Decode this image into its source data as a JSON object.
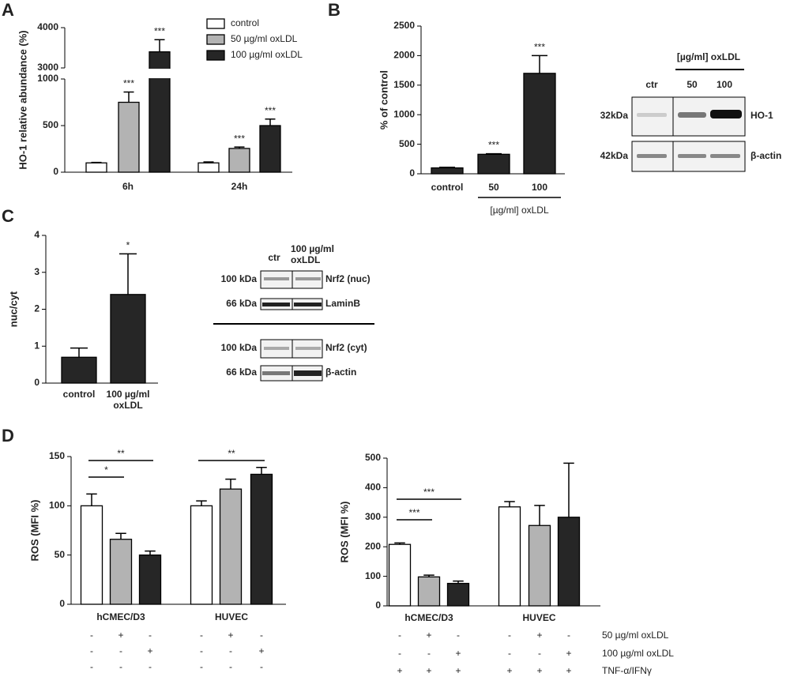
{
  "panel_labels": [
    "A",
    "B",
    "C",
    "D"
  ],
  "chart_data": [
    {
      "type": "bar",
      "ylabel": "HO-1 relative abundance (%)",
      "categories": [
        "6h",
        "24h"
      ],
      "series": [
        {
          "name": "control",
          "color": "#ffffff",
          "values": [
            100,
            100
          ],
          "errors": [
            5,
            10
          ],
          "stars": [
            null,
            null
          ]
        },
        {
          "name": "50 µg/ml oxLDL",
          "color": "#b3b3b3",
          "values": [
            750,
            255
          ],
          "errors": [
            110,
            15
          ],
          "stars": [
            "***",
            "***"
          ]
        },
        {
          "name": "100 µg/ml oxLDL",
          "color": "#262626",
          "values": [
            3400,
            500
          ],
          "errors": [
            300,
            70
          ],
          "stars": [
            "***",
            "***"
          ]
        }
      ],
      "ylim": [
        0,
        4000
      ],
      "axis_break": [
        1000,
        3000
      ],
      "yticks": [
        0,
        500,
        1000,
        3000,
        4000
      ]
    },
    {
      "type": "bar",
      "ylabel": "% of control",
      "categories": [
        "control",
        "50",
        "100"
      ],
      "color": "#262626",
      "values": [
        100,
        330,
        1700
      ],
      "errors": [
        10,
        10,
        300
      ],
      "stars": [
        null,
        "***",
        "***"
      ],
      "x_group_label": "[µg/ml] oxLDL",
      "ylim": [
        0,
        2500
      ],
      "yticks": [
        0,
        500,
        1000,
        1500,
        2000,
        2500
      ]
    },
    {
      "type": "bar",
      "ylabel": "nuc/cyt",
      "categories": [
        "control",
        "100 µg/ml oxLDL"
      ],
      "color": "#262626",
      "values": [
        0.7,
        2.4
      ],
      "errors": [
        0.25,
        1.1
      ],
      "stars": [
        null,
        "*"
      ],
      "ylim": [
        0,
        4
      ],
      "yticks": [
        0,
        1,
        2,
        3,
        4
      ]
    },
    {
      "type": "bar",
      "ylabel": "ROS (MFI %)",
      "categories": [
        "hCMEC/D3",
        "HUVEC"
      ],
      "series": [
        {
          "color": "#ffffff",
          "values": [
            100,
            100
          ],
          "errors": [
            12,
            5
          ]
        },
        {
          "color": "#b3b3b3",
          "values": [
            66,
            117
          ],
          "errors": [
            6,
            10
          ]
        },
        {
          "color": "#262626",
          "values": [
            50,
            132
          ],
          "errors": [
            4,
            7
          ]
        }
      ],
      "brackets": [
        "*",
        "**",
        "**"
      ],
      "treatments": [
        {
          "signs": [
            "-",
            "+",
            "-",
            "-",
            "+",
            "-"
          ]
        },
        {
          "signs": [
            "-",
            "-",
            "+",
            "-",
            "-",
            "+"
          ]
        },
        {
          "signs": [
            "-",
            "-",
            "-",
            "-",
            "-",
            "-"
          ]
        }
      ],
      "ylim": [
        0,
        150
      ],
      "yticks": [
        0,
        50,
        100,
        150
      ]
    },
    {
      "type": "bar",
      "ylabel": "ROS (MFI %)",
      "categories": [
        "hCMEC/D3",
        "HUVEC"
      ],
      "series": [
        {
          "color": "#ffffff",
          "values": [
            208,
            335
          ],
          "errors": [
            5,
            18
          ]
        },
        {
          "color": "#b3b3b3",
          "values": [
            98,
            272
          ],
          "errors": [
            6,
            68
          ]
        },
        {
          "color": "#262626",
          "values": [
            76,
            300
          ],
          "errors": [
            8,
            183
          ]
        }
      ],
      "brackets": [
        "***",
        "***"
      ],
      "treatments": [
        {
          "label": "50 µg/ml oxLDL",
          "signs": [
            "-",
            "+",
            "-",
            "-",
            "+",
            "-"
          ]
        },
        {
          "label": "100 µg/ml oxLDL",
          "signs": [
            "-",
            "-",
            "+",
            "-",
            "-",
            "+"
          ]
        },
        {
          "label": "TNF-α/IFNγ",
          "signs": [
            "+",
            "+",
            "+",
            "+",
            "+",
            "+"
          ]
        }
      ],
      "ylim": [
        0,
        500
      ],
      "yticks": [
        0,
        100,
        200,
        300,
        400,
        500
      ]
    }
  ],
  "blots": {
    "B": {
      "header": "[µg/ml] oxLDL",
      "lanes": [
        "ctr",
        "50",
        "100"
      ],
      "rows": [
        {
          "size": "32kDa",
          "protein": "HO-1"
        },
        {
          "size": "42kDa",
          "protein": "β-actin"
        }
      ]
    },
    "C": {
      "lanes": [
        "ctr",
        "100 µg/ml oxLDL"
      ],
      "rows": [
        {
          "size": "100 kDa",
          "protein": "Nrf2 (nuc)"
        },
        {
          "size": "66 kDa",
          "protein": "LaminB"
        },
        {
          "size": "100 kDa",
          "protein": "Nrf2 (cyt)"
        },
        {
          "size": "66 kDa",
          "protein": "β-actin"
        }
      ]
    }
  }
}
